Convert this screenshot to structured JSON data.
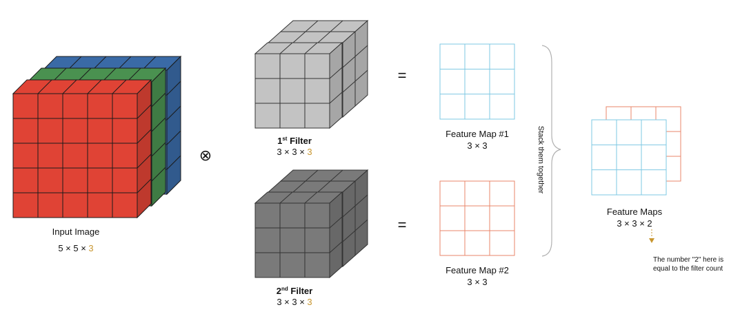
{
  "input": {
    "label": "Input Image",
    "dims_prefix": "5 × 5 × ",
    "dims_channels": "3",
    "channel_colors": [
      "#e04335",
      "#4a9150",
      "#3a6aa6"
    ]
  },
  "operator": "⊗",
  "filters": [
    {
      "ordinal": "1",
      "suffix": "st",
      "word": "Filter",
      "dims_prefix": "3 × 3 × ",
      "dims_channels": "3",
      "color": "#c3c3c3"
    },
    {
      "ordinal": "2",
      "suffix": "nd",
      "word": "Filter",
      "dims_prefix": "3 × 3 × ",
      "dims_channels": "3",
      "color": "#7a7a7a"
    }
  ],
  "equals": [
    "=",
    "="
  ],
  "feature_maps": [
    {
      "label": "Feature Map #1",
      "dims": "3 × 3",
      "color": "#7ec8e3"
    },
    {
      "label": "Feature Map #2",
      "dims": "3 × 3",
      "color": "#e8856a"
    }
  ],
  "brace_label": "Stack them together",
  "stacked": {
    "label": "Feature Maps",
    "dims": "3 × 3 × 2"
  },
  "note": {
    "line1": "The number \"2\" here is",
    "line2": "equal to the filter count"
  },
  "colors": {
    "accent": "#c8962f",
    "note": "#8a8a8a",
    "brace": "#b0b0b0"
  }
}
